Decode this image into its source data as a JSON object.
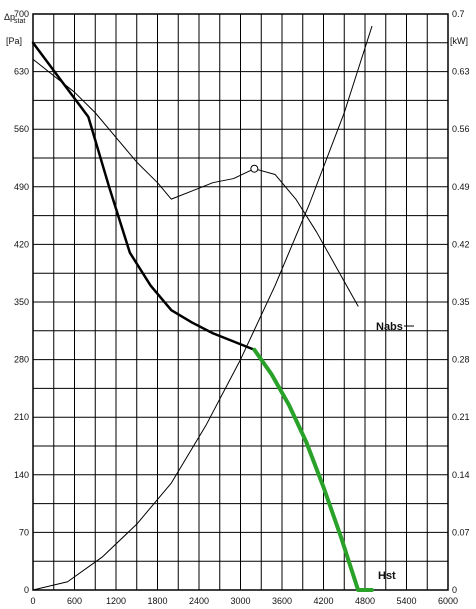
{
  "chart_data": {
    "type": "line",
    "left_axis": {
      "label_line1": "Δp",
      "label_sub": "stat",
      "label_line2": "[Pa]",
      "ylim": [
        0,
        700
      ],
      "ticks": [
        0,
        70,
        140,
        210,
        280,
        350,
        420,
        490,
        560,
        630,
        700
      ]
    },
    "right_axis": {
      "label": "[kW]",
      "ylim": [
        0,
        0.7
      ],
      "ticks": [
        "0",
        "0.07",
        "0.14",
        "0.21",
        "0.28",
        "0.35",
        "0.42",
        "0.49",
        "0.56",
        "0.63",
        "0.7"
      ]
    },
    "x_axis": {
      "xlim": [
        0,
        6000
      ],
      "ticks": [
        0,
        600,
        1200,
        1800,
        2400,
        3000,
        3600,
        4200,
        4800,
        5400,
        6000
      ]
    },
    "grid": true,
    "series": [
      {
        "label": "",
        "axis": "left",
        "color": "#000000",
        "x": [
          0,
          400,
          800,
          1100,
          1400,
          1700,
          2000,
          2300,
          2600,
          2900,
          3200
        ],
        "y": [
          665,
          620,
          575,
          490,
          410,
          370,
          340,
          325,
          312,
          302,
          292
        ]
      },
      {
        "label": "Hst",
        "axis": "left",
        "color": "#2aa22a",
        "x": [
          3200,
          3450,
          3700,
          3950,
          4200,
          4450,
          4700,
          4900
        ],
        "y": [
          292,
          262,
          225,
          180,
          125,
          65,
          0,
          -5
        ]
      },
      {
        "label": "Nabs",
        "axis": "right",
        "color": "#000000",
        "x": [
          0,
          300,
          600,
          900,
          1200,
          1500,
          1800,
          2000,
          2300,
          2600,
          2900,
          3200,
          3500,
          3800,
          4100,
          4400,
          4700
        ],
        "y": [
          0.645,
          0.625,
          0.605,
          0.58,
          0.55,
          0.52,
          0.495,
          0.475,
          0.485,
          0.495,
          0.5,
          0.512,
          0.505,
          0.475,
          0.435,
          0.39,
          0.345
        ]
      },
      {
        "label": "",
        "axis": "right",
        "color": "#000000",
        "x": [
          0,
          500,
          1000,
          1500,
          2000,
          2500,
          3000,
          3500,
          4000,
          4500,
          4900
        ],
        "y": [
          0,
          0.01,
          0.04,
          0.08,
          0.13,
          0.2,
          0.28,
          0.37,
          0.47,
          0.58,
          0.685
        ]
      }
    ],
    "point_marker": {
      "x": 3200,
      "y_right": 0.512
    },
    "labels": {
      "nabs": "Nabs",
      "hst": "Hst"
    }
  }
}
